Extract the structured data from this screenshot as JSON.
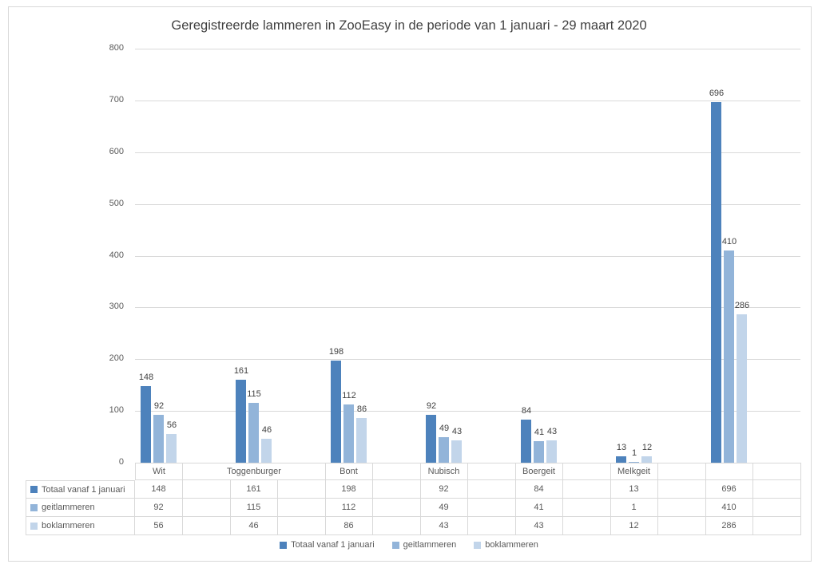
{
  "chart_data": {
    "type": "bar",
    "title": "Geregistreerde lammeren in ZooEasy in de periode van 1 januari - 29 maart 2020",
    "categories": [
      "Wit",
      "Toggenburger",
      "Bont",
      "Nubisch",
      "Boergeit",
      "Melkgeit",
      ""
    ],
    "series": [
      {
        "name": "Totaal vanaf 1 januari",
        "color": "#4d82bc",
        "values": [
          148,
          161,
          198,
          92,
          84,
          13,
          696
        ]
      },
      {
        "name": "geitlammeren",
        "color": "#92b4d9",
        "values": [
          92,
          115,
          112,
          49,
          41,
          1,
          410
        ]
      },
      {
        "name": "boklammeren",
        "color": "#c2d5ea",
        "values": [
          56,
          46,
          86,
          43,
          43,
          12,
          286
        ]
      }
    ],
    "y_axis": {
      "min": 0,
      "max": 800,
      "step": 100,
      "tick_labels": [
        "0",
        "100",
        "200",
        "300",
        "400",
        "500",
        "600",
        "700",
        "800"
      ]
    },
    "grid": true,
    "legend_position": "bottom",
    "data_table_shown": true,
    "data_labels_shown": true
  },
  "colors": {
    "grid_border": "#d9d9d9",
    "axis_text": "#595959",
    "title_text": "#404040",
    "value_label_text": "#404040",
    "background": "#ffffff"
  }
}
